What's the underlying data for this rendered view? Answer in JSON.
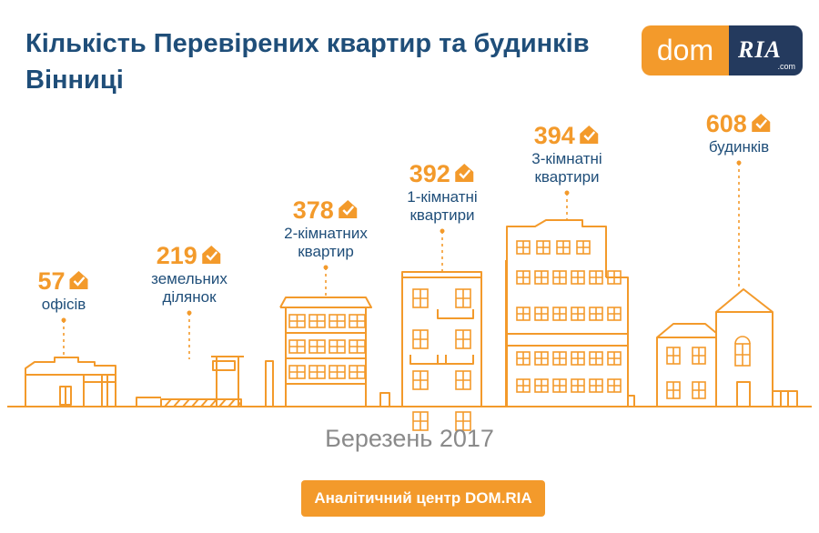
{
  "title": "Кількість Перевірених квартир та будинків Вінниці",
  "logo": {
    "left": "dom",
    "right": "RIA",
    "right_suffix": ".com"
  },
  "colors": {
    "accent": "#f39a2b",
    "title": "#1f4e79",
    "logo_dark": "#243a5e",
    "muted": "#8a8a8a"
  },
  "chart_data": {
    "type": "bar",
    "title": "Кількість Перевірених квартир та будинків Вінниці",
    "categories": [
      "офісів",
      "земельних ділянок",
      "2-кімнатних квартир",
      "1-кімнатні квартири",
      "3-кімнатні квартири",
      "будинків"
    ],
    "values": [
      57,
      219,
      378,
      392,
      394,
      608
    ],
    "label_lines": [
      [
        "офісів"
      ],
      [
        "земельних",
        "ділянок"
      ],
      [
        "2-кімнатних",
        "квартир"
      ],
      [
        "1-кімнатні",
        "квартири"
      ],
      [
        "3-кімнатні",
        "квартири"
      ],
      [
        "будинків"
      ]
    ],
    "marker_icon": "house-check-icon"
  },
  "date": "Березень 2017",
  "footer": "Аналітичний центр DOM.RIA"
}
